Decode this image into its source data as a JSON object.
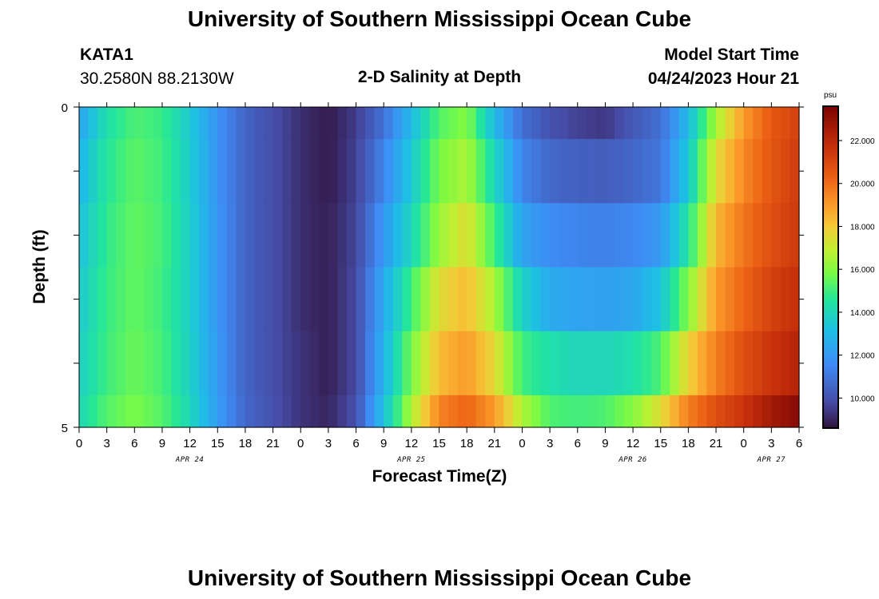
{
  "title": "University of Southern Mississippi Ocean Cube",
  "station": {
    "id": "KATA1",
    "coords": "30.2580N  88.2130W"
  },
  "subtitle": "2-D Salinity at Depth",
  "model": {
    "label": "Model Start Time",
    "value": "04/24/2023 Hour 21"
  },
  "second_title": "University of Southern Mississippi Ocean Cube",
  "chart_data": {
    "type": "heatmap",
    "title": "2-D Salinity at Depth",
    "xlabel": "Forecast Time(Z)",
    "ylabel": "Depth (ft)",
    "y_ticks": [
      "0",
      "5"
    ],
    "ylim": [
      0,
      5
    ],
    "x_ticks": [
      "0",
      "3",
      "6",
      "9",
      "12",
      "15",
      "18",
      "21",
      "0",
      "3",
      "6",
      "9",
      "12",
      "15",
      "18",
      "21",
      "0",
      "3",
      "6",
      "9",
      "12",
      "15",
      "18",
      "21",
      "0",
      "3",
      "6"
    ],
    "day_labels": [
      {
        "label": "APR 24",
        "hour": 12
      },
      {
        "label": "APR 25",
        "hour": 36
      },
      {
        "label": "APR 26",
        "hour": 60
      },
      {
        "label": "APR 27",
        "hour": 75
      }
    ],
    "x_range_hours": [
      0,
      78
    ],
    "colorbar": {
      "unit": "psu",
      "min": 8.6,
      "max": 23.6,
      "ticks": [
        "10.000",
        "12.000",
        "14.000",
        "16.000",
        "18.000",
        "20.000",
        "22.000"
      ],
      "tick_values": [
        10,
        12,
        14,
        16,
        18,
        20,
        22
      ],
      "colormap": "turbo"
    },
    "depth_layers_ft": [
      0,
      0.5,
      1.5,
      2.5,
      3.5,
      4.5
    ],
    "salinity_keyframes": {
      "hours": [
        0,
        3,
        6,
        9,
        12,
        15,
        18,
        21,
        24,
        27,
        30,
        33,
        36,
        39,
        42,
        45,
        48,
        51,
        54,
        57,
        60,
        63,
        66,
        69,
        72,
        75,
        78
      ],
      "layers": [
        [
          12.3,
          14.3,
          15.2,
          14.9,
          13.5,
          11.8,
          10.5,
          9.9,
          9.2,
          8.8,
          9.5,
          10.9,
          13.0,
          15.3,
          16.0,
          13.0,
          10.8,
          10.0,
          9.6,
          9.4,
          10.2,
          10.8,
          13.0,
          16.5,
          19.0,
          20.5,
          21.2
        ],
        [
          12.8,
          14.6,
          15.4,
          15.0,
          13.6,
          11.8,
          10.5,
          9.9,
          9.2,
          8.8,
          9.6,
          11.4,
          13.5,
          15.8,
          16.6,
          14.0,
          11.4,
          10.6,
          10.4,
          10.3,
          10.6,
          11.0,
          13.5,
          17.5,
          19.4,
          20.6,
          21.4
        ],
        [
          13.2,
          14.8,
          15.5,
          15.1,
          13.7,
          11.9,
          10.5,
          9.9,
          9.2,
          8.9,
          9.7,
          12.0,
          14.0,
          16.3,
          17.5,
          15.0,
          12.3,
          11.6,
          11.4,
          11.3,
          11.5,
          12.0,
          14.5,
          18.4,
          19.8,
          20.8,
          21.5
        ],
        [
          13.5,
          14.9,
          15.5,
          15.0,
          13.7,
          11.9,
          10.5,
          9.9,
          9.2,
          8.9,
          9.8,
          12.5,
          15.0,
          17.5,
          18.3,
          16.5,
          13.8,
          12.5,
          12.3,
          12.2,
          12.4,
          13.3,
          16.0,
          19.0,
          20.2,
          21.2,
          21.8
        ],
        [
          13.7,
          15.0,
          15.6,
          15.1,
          13.8,
          12.0,
          10.5,
          9.9,
          9.3,
          8.9,
          9.8,
          12.8,
          15.8,
          18.3,
          19.0,
          17.6,
          15.0,
          14.3,
          14.0,
          14.0,
          14.3,
          15.2,
          17.8,
          19.6,
          20.8,
          21.6,
          22.2
        ],
        [
          14.0,
          15.3,
          15.8,
          15.3,
          14.0,
          12.1,
          10.6,
          10.0,
          9.3,
          9.0,
          10.0,
          13.2,
          16.6,
          19.5,
          20.2,
          19.0,
          16.6,
          15.2,
          15.0,
          15.2,
          16.0,
          17.5,
          19.6,
          20.8,
          21.6,
          22.6,
          23.3
        ]
      ]
    }
  }
}
